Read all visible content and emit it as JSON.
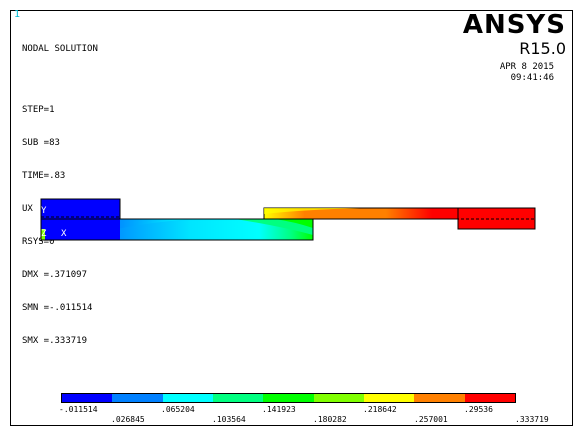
{
  "window_number": "1",
  "header": {
    "title": "NODAL SOLUTION",
    "lines": [
      "STEP=1",
      "SUB =83",
      "TIME=.83",
      "UX       (AVG)",
      "RSYS=0",
      "DMX =.371097",
      "SMN =-.011514",
      "SMX =.333719"
    ]
  },
  "brand": {
    "logo": "ANSYS",
    "version": "R15.0"
  },
  "timestamp": {
    "date": "APR  8 2015",
    "time": "09:41:46"
  },
  "triad": {
    "y": "Y",
    "z": "Z",
    "x": "X"
  },
  "legend": {
    "colors": [
      "#0000ff",
      "#0080ff",
      "#00ffff",
      "#00ff80",
      "#00ff00",
      "#80ff00",
      "#ffff00",
      "#ff8000",
      "#ff0000"
    ],
    "labels_top": [
      "-.011514",
      ".065204",
      ".141923",
      ".218642",
      ".29536"
    ],
    "labels_bottom": [
      ".026845",
      ".103564",
      ".180282",
      ".257001",
      ".333719"
    ]
  }
}
